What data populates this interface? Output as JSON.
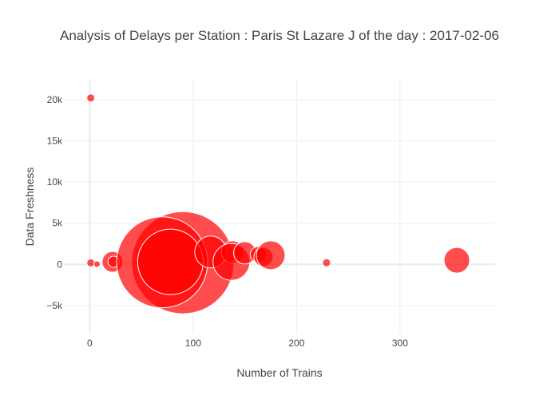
{
  "chart_data": {
    "type": "scatter",
    "title": "Analysis of Delays per Station : Paris St Lazare J of the day : 2017-02-06",
    "xlabel": "Number of Trains",
    "ylabel": "Data Freshness",
    "xlim": [
      -25,
      392
    ],
    "ylim": [
      -8400,
      22400
    ],
    "x_ticks": [
      0,
      100,
      200,
      300
    ],
    "x_tick_labels": [
      "0",
      "100",
      "200",
      "300"
    ],
    "y_ticks": [
      -5000,
      0,
      5000,
      10000,
      15000,
      20000
    ],
    "y_tick_labels": [
      "−5k",
      "0",
      "5k",
      "10k",
      "15k",
      "20k"
    ],
    "grid": true,
    "marker_color": "#ff0000",
    "marker_opacity": 0.7,
    "marker_line_color": "#ffffff",
    "points": [
      {
        "x": 1,
        "y": 20200,
        "size": 5
      },
      {
        "x": 1,
        "y": 180,
        "size": 5
      },
      {
        "x": 7,
        "y": 30,
        "size": 4
      },
      {
        "x": 22,
        "y": 300,
        "size": 13
      },
      {
        "x": 23,
        "y": 320,
        "size": 7
      },
      {
        "x": 90,
        "y": 200,
        "size": 64
      },
      {
        "x": 70,
        "y": 250,
        "size": 57
      },
      {
        "x": 78,
        "y": 300,
        "size": 41
      },
      {
        "x": 117,
        "y": 1500,
        "size": 20
      },
      {
        "x": 138,
        "y": 1500,
        "size": 14
      },
      {
        "x": 137,
        "y": 300,
        "size": 23
      },
      {
        "x": 150,
        "y": 1400,
        "size": 14
      },
      {
        "x": 163,
        "y": 1200,
        "size": 10
      },
      {
        "x": 168,
        "y": 900,
        "size": 12
      },
      {
        "x": 175,
        "y": 1100,
        "size": 18
      },
      {
        "x": 229,
        "y": 200,
        "size": 5
      },
      {
        "x": 355,
        "y": 500,
        "size": 16
      }
    ]
  }
}
